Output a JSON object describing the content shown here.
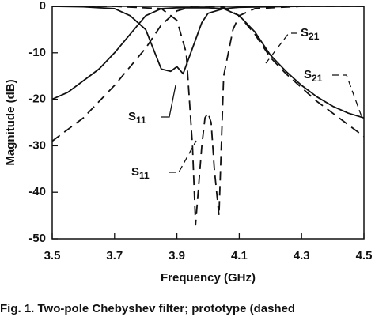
{
  "chart_data": {
    "type": "line",
    "x_label": "Frequency (GHz)",
    "y_label": "Magnitude (dB)",
    "caption": "Fig. 1. Two-pole Chebyshev filter; prototype (dashed",
    "xlim": [
      3.5,
      4.5
    ],
    "xticks": [
      3.5,
      3.7,
      3.9,
      4.1,
      4.3,
      4.5
    ],
    "ylim": [
      -50,
      0
    ],
    "yticks": [
      0,
      -10,
      -20,
      -30,
      -40,
      -50
    ],
    "series": [
      {
        "color": "#111111",
        "line_style": "solid",
        "x": [
          3.5,
          3.55,
          3.6,
          3.65,
          3.7,
          3.75,
          3.8,
          3.85,
          3.9,
          3.95,
          4.0,
          4.05,
          4.1,
          4.15,
          4.2,
          4.25,
          4.3,
          4.35,
          4.4,
          4.45,
          4.5
        ],
        "values": [
          -20,
          -18.5,
          -16,
          -13.5,
          -10,
          -6,
          -2,
          -0.5,
          -0.3,
          -0.3,
          -0.3,
          -0.5,
          -2,
          -5.5,
          -10.5,
          -14,
          -17,
          -19.5,
          -21.5,
          -23,
          -24
        ]
      },
      {
        "color": "#111111",
        "line_style": "solid",
        "x": [
          3.5,
          3.6,
          3.7,
          3.75,
          3.8,
          3.85,
          3.88,
          3.9,
          3.92,
          3.95,
          3.98,
          4.0,
          4.05,
          4.1,
          4.3,
          4.5
        ],
        "values": [
          0,
          -0.1,
          -0.5,
          -2,
          -5,
          -13.5,
          -14,
          -13,
          -14.5,
          -9,
          -3.5,
          -1.5,
          -0.5,
          -0.2,
          0,
          0
        ]
      },
      {
        "color": "#111111",
        "line_style": "dashed",
        "x": [
          3.5,
          3.55,
          3.6,
          3.65,
          3.7,
          3.75,
          3.8,
          3.85,
          3.9,
          3.95,
          4.0,
          4.05,
          4.1,
          4.15,
          4.2,
          4.25,
          4.3,
          4.35,
          4.4,
          4.45,
          4.5
        ],
        "values": [
          -29,
          -26.5,
          -24,
          -20.5,
          -17,
          -13,
          -9,
          -4,
          -1,
          0,
          0,
          -0.2,
          -2,
          -6,
          -11,
          -14.5,
          -17.5,
          -20.5,
          -23,
          -25.5,
          -28
        ]
      },
      {
        "color": "#111111",
        "line_style": "dashed",
        "x": [
          3.5,
          3.7,
          3.85,
          3.9,
          3.93,
          3.95,
          3.96,
          3.98,
          3.99,
          4.0,
          4.01,
          4.02,
          4.035,
          4.05,
          4.08,
          4.1,
          4.15,
          4.3,
          4.5
        ],
        "values": [
          0,
          0,
          -0.5,
          -3,
          -10,
          -30,
          -47,
          -30,
          -24,
          -23,
          -25,
          -35,
          -45,
          -15,
          -5,
          -2,
          -0.5,
          0,
          0
        ]
      }
    ],
    "annotations": [
      {
        "text": "S",
        "subscript": "21"
      },
      {
        "text": "S",
        "subscript": "21"
      },
      {
        "text": "S",
        "subscript": "11"
      },
      {
        "text": "S",
        "subscript": "11"
      }
    ]
  }
}
